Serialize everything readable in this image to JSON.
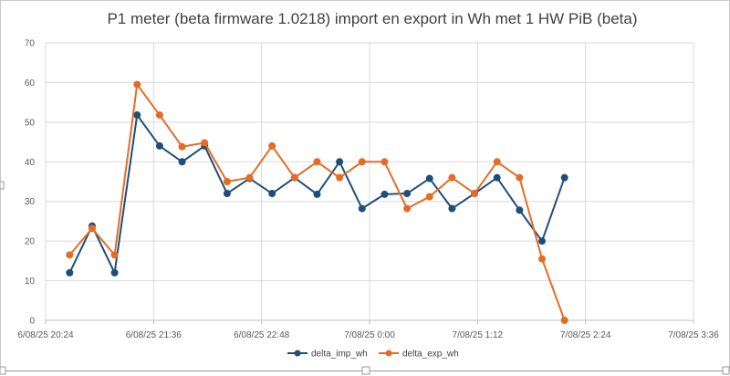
{
  "chart_data": {
    "type": "line",
    "title": "P1 meter (beta firmware 1.0218) import en export in Wh met 1 HW PiB (beta)",
    "xlabel": "",
    "ylabel": "",
    "ylim": [
      0,
      70
    ],
    "yticks": [
      "0",
      "10",
      "20",
      "30",
      "40",
      "50",
      "60",
      "70"
    ],
    "x_range": [
      "6/08/25 20:24",
      "7/08/25 3:36"
    ],
    "xticks": [
      "6/08/25 20:24",
      "6/08/25 21:36",
      "6/08/25 22:48",
      "7/08/25 0:00",
      "7/08/25 1:12",
      "7/08/25 2:24",
      "7/08/25 3:36"
    ],
    "grid": true,
    "legend_position": "bottom",
    "x": [
      "6/08/25 20:40",
      "6/08/25 20:55",
      "6/08/25 21:10",
      "6/08/25 21:25",
      "6/08/25 21:40",
      "6/08/25 21:55",
      "6/08/25 22:10",
      "6/08/25 22:25",
      "6/08/25 22:40",
      "6/08/25 22:55",
      "6/08/25 23:10",
      "6/08/25 23:25",
      "6/08/25 23:40",
      "6/08/25 23:55",
      "7/08/25 0:10",
      "7/08/25 0:25",
      "7/08/25 0:40",
      "7/08/25 0:55",
      "7/08/25 1:10",
      "7/08/25 1:25",
      "7/08/25 1:40",
      "7/08/25 1:55",
      "7/08/25 2:10"
    ],
    "series": [
      {
        "name": "delta_imp_wh",
        "color": "#1f4e79",
        "values": [
          12,
          23.8,
          12,
          51.8,
          44,
          40,
          44,
          32,
          35.8,
          32,
          36,
          31.8,
          40,
          28.2,
          31.8,
          32,
          35.8,
          28.2,
          32,
          36,
          27.8,
          20,
          36
        ]
      },
      {
        "name": "delta_exp_wh",
        "color": "#e46c25",
        "values": [
          16.5,
          23.2,
          16.5,
          59.5,
          51.8,
          43.8,
          44.8,
          35,
          36,
          44,
          36,
          40,
          36,
          40,
          40,
          28.2,
          31.2,
          36,
          32,
          40,
          36,
          15.5,
          0
        ]
      }
    ]
  }
}
